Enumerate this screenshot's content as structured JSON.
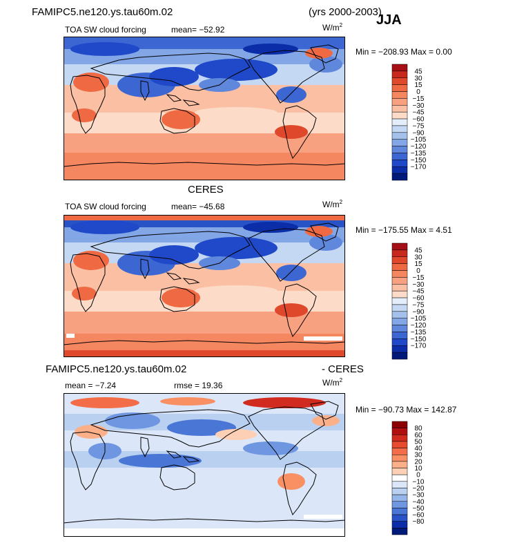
{
  "header": {
    "model_title": "FAMIPC5.ne120.ys.tau60m.02",
    "years": "(yrs 2000-2003)",
    "season": "JJA"
  },
  "panels": [
    {
      "id": "model",
      "panel_title": "",
      "field_label": "TOA SW cloud forcing",
      "mean_text": "mean=  −52.92",
      "rmse_text": "",
      "units": "W/m",
      "units_sup": "2",
      "minmax_text": "Min = −208.93 Max =    0.00"
    },
    {
      "id": "ceres",
      "panel_title": "CERES",
      "field_label": "TOA SW cloud forcing",
      "mean_text": "mean=  −45.68",
      "rmse_text": "",
      "units": "W/m",
      "units_sup": "2",
      "minmax_text": "Min = −175.55 Max =    4.51"
    },
    {
      "id": "diff",
      "panel_title_left": "FAMIPC5.ne120.ys.tau60m.02",
      "panel_title_right": "- CERES",
      "field_label": "",
      "mean_text": "mean =   −7.24",
      "rmse_text": "rmse =  19.36",
      "units": "W/m",
      "units_sup": "2",
      "minmax_text": "Min = −90.73 Max = 142.87"
    }
  ],
  "chart_data": [
    {
      "type": "heatmap",
      "title": "TOA SW cloud forcing",
      "units": "W/m2",
      "mean": -52.92,
      "min": -208.93,
      "max": 0.0,
      "colorbar_levels": [
        "45",
        "30",
        "15",
        "0",
        "−15",
        "−30",
        "−45",
        "−60",
        "−75",
        "−90",
        "−105",
        "−120",
        "−135",
        "−150",
        "−170"
      ],
      "colorbar_colors": [
        "#a50f15",
        "#c8291f",
        "#e0482c",
        "#ef6a42",
        "#f58760",
        "#f8a180",
        "#fbbfa3",
        "#fcdcc8",
        "#e4eefa",
        "#c4d8f3",
        "#a4c1ec",
        "#82a6e6",
        "#5f88dd",
        "#3c67d3",
        "#1f49c8",
        "#0b2ea8",
        "#001a7a"
      ],
      "grid": false
    },
    {
      "type": "heatmap",
      "title": "TOA SW cloud forcing",
      "units": "W/m2",
      "mean": -45.68,
      "min": -175.55,
      "max": 4.51,
      "colorbar_levels": [
        "45",
        "30",
        "15",
        "0",
        "−15",
        "−30",
        "−45",
        "−60",
        "−75",
        "−90",
        "−105",
        "−120",
        "−135",
        "−150",
        "−170"
      ],
      "colorbar_colors": [
        "#a50f15",
        "#c8291f",
        "#e0482c",
        "#ef6a42",
        "#f58760",
        "#f8a180",
        "#fbbfa3",
        "#fcdcc8",
        "#e4eefa",
        "#c4d8f3",
        "#a4c1ec",
        "#82a6e6",
        "#5f88dd",
        "#3c67d3",
        "#1f49c8",
        "#0b2ea8",
        "#001a7a"
      ],
      "grid": false
    },
    {
      "type": "heatmap",
      "title": "",
      "units": "W/m2",
      "mean": -7.24,
      "rmse": 19.36,
      "min": -90.73,
      "max": 142.87,
      "colorbar_levels": [
        "80",
        "60",
        "50",
        "40",
        "30",
        "20",
        "10",
        "0",
        "−10",
        "−20",
        "−30",
        "−40",
        "−50",
        "−60",
        "−80"
      ],
      "colorbar_colors": [
        "#8b0000",
        "#b01010",
        "#d12b1f",
        "#e84c30",
        "#f36e48",
        "#f89064",
        "#fbb08a",
        "#fdd0b6",
        "#ffffff",
        "#dbe7f8",
        "#b9d0f1",
        "#95b6ea",
        "#6f97e1",
        "#4a76d6",
        "#2753c6",
        "#0b2ea8",
        "#001a7a"
      ],
      "grid": false
    }
  ]
}
